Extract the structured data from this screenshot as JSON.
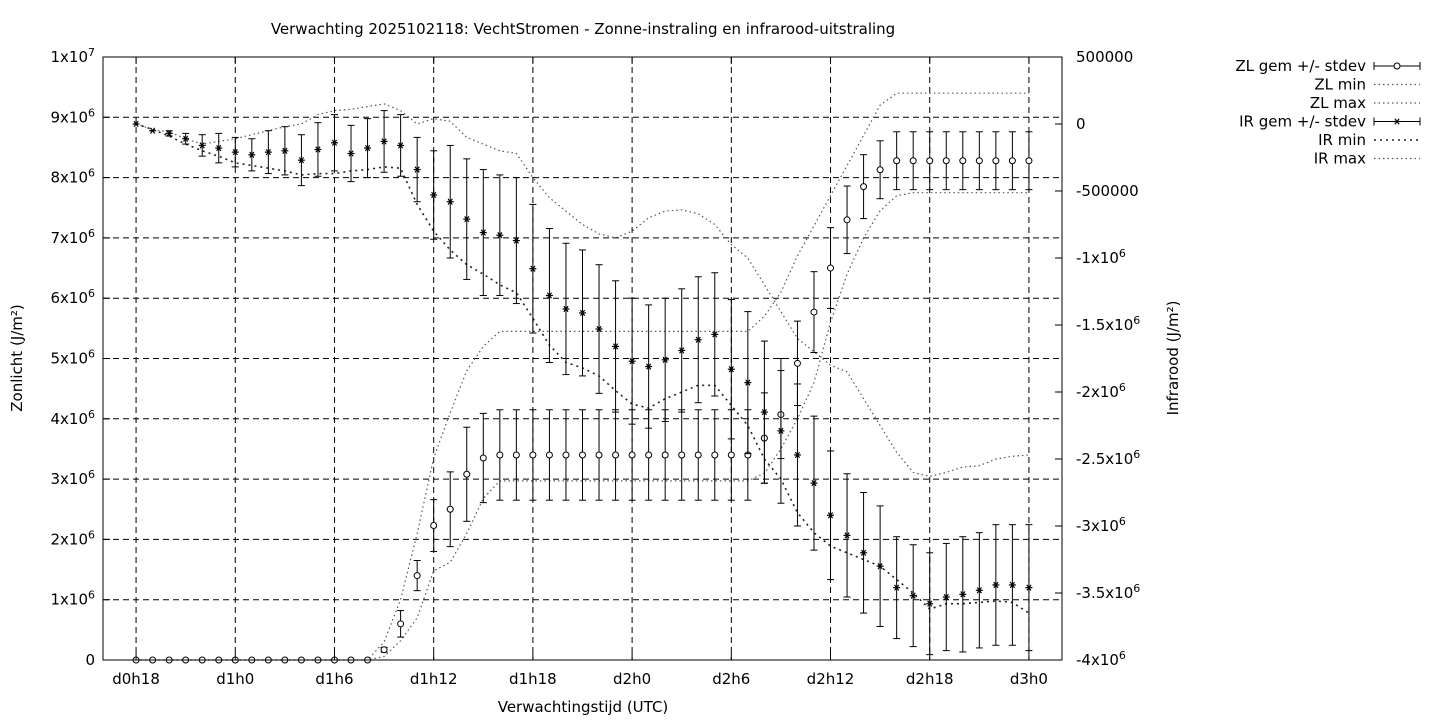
{
  "chart_data": {
    "type": "line",
    "title": "Verwachting 2025102118: VechtStromen - Zonne-instraling en infrarood-uitstraling",
    "xlabel": "Verwachtingstijd (UTC)",
    "ylabel": "Zonlicht (J/m²)",
    "y2label": "Infrarood (J/m²)",
    "grid": true,
    "legend_position": "top-right, outside plot",
    "x_hours": [
      18,
      19,
      20,
      21,
      22,
      23,
      24,
      25,
      26,
      27,
      28,
      29,
      30,
      31,
      32,
      33,
      34,
      35,
      36,
      37,
      38,
      39,
      40,
      41,
      42,
      43,
      44,
      45,
      46,
      47,
      48,
      49,
      50,
      51,
      52,
      53,
      54,
      55,
      56,
      57,
      58,
      59,
      60,
      61,
      62,
      63,
      64,
      65,
      66,
      67,
      68,
      69,
      70,
      71,
      72
    ],
    "x_ticks": [
      {
        "hour": 18,
        "label": "d0h18"
      },
      {
        "hour": 24,
        "label": "d1h0"
      },
      {
        "hour": 30,
        "label": "d1h6"
      },
      {
        "hour": 36,
        "label": "d1h12"
      },
      {
        "hour": 42,
        "label": "d1h18"
      },
      {
        "hour": 48,
        "label": "d2h0"
      },
      {
        "hour": 54,
        "label": "d2h6"
      },
      {
        "hour": 60,
        "label": "d2h12"
      },
      {
        "hour": 66,
        "label": "d2h18"
      },
      {
        "hour": 72,
        "label": "d3h0"
      }
    ],
    "xlim": [
      16,
      74
    ],
    "ylim": [
      0,
      10000000
    ],
    "y2lim": [
      -4000000,
      500000
    ],
    "y_ticks": [
      {
        "value": 0,
        "label": "0",
        "exp": ""
      },
      {
        "value": 1000000,
        "label": "1x10",
        "exp": "6"
      },
      {
        "value": 2000000,
        "label": "2x10",
        "exp": "6"
      },
      {
        "value": 3000000,
        "label": "3x10",
        "exp": "6"
      },
      {
        "value": 4000000,
        "label": "4x10",
        "exp": "6"
      },
      {
        "value": 5000000,
        "label": "5x10",
        "exp": "6"
      },
      {
        "value": 6000000,
        "label": "6x10",
        "exp": "6"
      },
      {
        "value": 7000000,
        "label": "7x10",
        "exp": "6"
      },
      {
        "value": 8000000,
        "label": "8x10",
        "exp": "6"
      },
      {
        "value": 9000000,
        "label": "9x10",
        "exp": "6"
      },
      {
        "value": 10000000,
        "label": "1x10",
        "exp": "7"
      }
    ],
    "y2_ticks": [
      {
        "value": 500000,
        "label": "500000",
        "exp": ""
      },
      {
        "value": 0,
        "label": "0",
        "exp": ""
      },
      {
        "value": -500000,
        "label": "-500000",
        "exp": ""
      },
      {
        "value": -1000000,
        "label": "-1x10",
        "exp": "6"
      },
      {
        "value": -1500000,
        "label": "-1.5x10",
        "exp": "6"
      },
      {
        "value": -2000000,
        "label": "-2x10",
        "exp": "6"
      },
      {
        "value": -2500000,
        "label": "-2.5x10",
        "exp": "6"
      },
      {
        "value": -3000000,
        "label": "-3x10",
        "exp": "6"
      },
      {
        "value": -3500000,
        "label": "-3.5x10",
        "exp": "6"
      },
      {
        "value": -4000000,
        "label": "-4x10",
        "exp": "6"
      }
    ],
    "series": [
      {
        "name": "ZL gem +/- stdev",
        "axis": "y",
        "marker": "circle",
        "values": [
          0,
          0,
          0,
          0,
          0,
          0,
          0,
          0,
          0,
          0,
          0,
          0,
          0,
          0,
          0,
          170000,
          600000,
          1400000,
          2230000,
          2500000,
          3080000,
          3350000,
          3400000,
          3400000,
          3400000,
          3400000,
          3400000,
          3400000,
          3400000,
          3400000,
          3400000,
          3400000,
          3400000,
          3400000,
          3400000,
          3400000,
          3400000,
          3400000,
          3680000,
          4070000,
          4920000,
          5770000,
          6500000,
          7300000,
          7850000,
          8130000,
          8280000,
          8280000,
          8280000,
          8280000,
          8280000,
          8280000,
          8280000,
          8280000,
          8280000
        ],
        "stdev": [
          0,
          0,
          0,
          0,
          0,
          0,
          0,
          0,
          0,
          0,
          0,
          0,
          0,
          0,
          0,
          40000,
          220000,
          250000,
          430000,
          620000,
          780000,
          740000,
          750000,
          750000,
          750000,
          750000,
          750000,
          750000,
          750000,
          750000,
          750000,
          750000,
          750000,
          750000,
          750000,
          750000,
          750000,
          750000,
          750000,
          730000,
          700000,
          670000,
          670000,
          560000,
          530000,
          480000,
          480000,
          480000,
          480000,
          480000,
          480000,
          480000,
          480000,
          480000,
          480000
        ]
      },
      {
        "name": "ZL min",
        "axis": "y",
        "values": [
          0,
          0,
          0,
          0,
          0,
          0,
          0,
          0,
          0,
          0,
          0,
          0,
          0,
          0,
          0,
          60000,
          320000,
          700000,
          1480000,
          1620000,
          2100000,
          2680000,
          2970000,
          2970000,
          2970000,
          2970000,
          2970000,
          2970000,
          2970000,
          2970000,
          2970000,
          2970000,
          2970000,
          2970000,
          2970000,
          2970000,
          2970000,
          2970000,
          3100000,
          3500000,
          4000000,
          4600000,
          5600000,
          6400000,
          7000000,
          7450000,
          7700000,
          7750000,
          7750000,
          7750000,
          7750000,
          7750000,
          7750000,
          7750000,
          7750000
        ]
      },
      {
        "name": "ZL max",
        "axis": "y",
        "values": [
          0,
          0,
          0,
          0,
          0,
          0,
          0,
          0,
          0,
          0,
          0,
          0,
          0,
          0,
          0,
          300000,
          1000000,
          2100000,
          3350000,
          4100000,
          4800000,
          5200000,
          5450000,
          5450000,
          5450000,
          5450000,
          5450000,
          5450000,
          5450000,
          5450000,
          5450000,
          5450000,
          5450000,
          5450000,
          5450000,
          5450000,
          5450000,
          5450000,
          5700000,
          6100000,
          6700000,
          7200000,
          7700000,
          8200000,
          8700000,
          9200000,
          9400000,
          9400000,
          9400000,
          9400000,
          9400000,
          9400000,
          9400000,
          9400000,
          9400000
        ]
      },
      {
        "name": "IR gem +/- stdev",
        "axis": "y2",
        "marker": "star",
        "values": [
          0,
          -50000,
          -70000,
          -110000,
          -160000,
          -180000,
          -210000,
          -230000,
          -210000,
          -200000,
          -270000,
          -190000,
          -140000,
          -220000,
          -180000,
          -130000,
          -160000,
          -340000,
          -530000,
          -580000,
          -710000,
          -810000,
          -830000,
          -870000,
          -1080000,
          -1280000,
          -1380000,
          -1410000,
          -1530000,
          -1660000,
          -1770000,
          -1810000,
          -1760000,
          -1690000,
          -1610000,
          -1570000,
          -1830000,
          -1930000,
          -2150000,
          -2290000,
          -2470000,
          -2680000,
          -2920000,
          -3070000,
          -3200000,
          -3300000,
          -3460000,
          -3520000,
          -3580000,
          -3530000,
          -3510000,
          -3480000,
          -3440000,
          -3440000,
          -3460000
        ],
        "stdev": [
          0,
          0,
          20000,
          40000,
          80000,
          110000,
          110000,
          120000,
          160000,
          180000,
          190000,
          200000,
          210000,
          210000,
          220000,
          230000,
          230000,
          240000,
          330000,
          420000,
          450000,
          470000,
          450000,
          470000,
          480000,
          500000,
          490000,
          470000,
          480000,
          490000,
          470000,
          460000,
          460000,
          460000,
          470000,
          460000,
          520000,
          530000,
          530000,
          540000,
          530000,
          500000,
          480000,
          460000,
          450000,
          450000,
          380000,
          380000,
          380000,
          400000,
          430000,
          430000,
          450000,
          450000,
          470000
        ]
      },
      {
        "name": "IR min",
        "axis": "y2",
        "values": [
          0,
          -40000,
          -90000,
          -150000,
          -200000,
          -240000,
          -290000,
          -310000,
          -330000,
          -350000,
          -380000,
          -370000,
          -370000,
          -350000,
          -340000,
          -320000,
          -330000,
          -600000,
          -800000,
          -940000,
          -1050000,
          -1120000,
          -1200000,
          -1260000,
          -1450000,
          -1650000,
          -1780000,
          -1820000,
          -1880000,
          -1990000,
          -2090000,
          -2120000,
          -2050000,
          -2000000,
          -1950000,
          -1950000,
          -2100000,
          -2250000,
          -2500000,
          -2650000,
          -2900000,
          -3050000,
          -3150000,
          -3200000,
          -3250000,
          -3300000,
          -3400000,
          -3500000,
          -3620000,
          -3580000,
          -3580000,
          -3570000,
          -3560000,
          -3570000,
          -3650000
        ]
      },
      {
        "name": "IR max",
        "axis": "y2",
        "values": [
          0,
          -40000,
          -60000,
          -110000,
          -150000,
          -130000,
          -110000,
          -80000,
          -50000,
          -20000,
          0,
          70000,
          100000,
          110000,
          130000,
          150000,
          100000,
          0,
          40000,
          20000,
          -100000,
          -150000,
          -200000,
          -220000,
          -400000,
          -550000,
          -650000,
          -750000,
          -820000,
          -850000,
          -800000,
          -700000,
          -650000,
          -640000,
          -670000,
          -750000,
          -900000,
          -1000000,
          -1200000,
          -1400000,
          -1600000,
          -1700000,
          -1800000,
          -1850000,
          -2050000,
          -2250000,
          -2450000,
          -2600000,
          -2630000,
          -2600000,
          -2560000,
          -2550000,
          -2500000,
          -2480000,
          -2470000
        ]
      }
    ]
  }
}
